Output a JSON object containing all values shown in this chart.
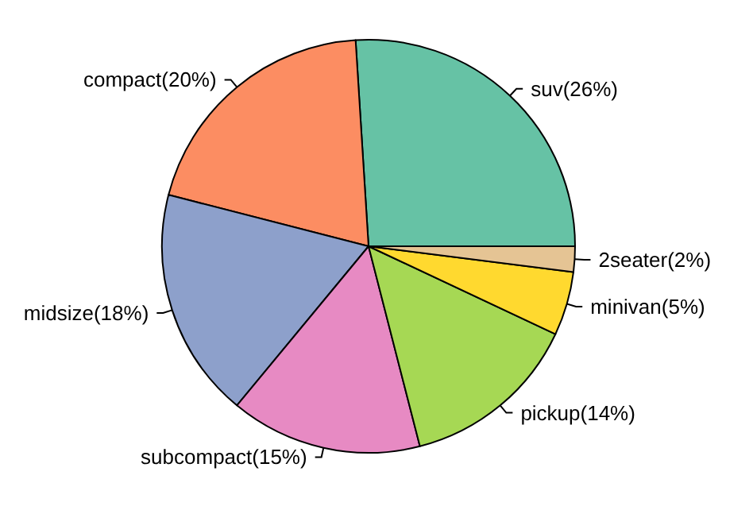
{
  "chart_data": {
    "type": "pie",
    "categories": [
      "suv(26%)",
      "compact(20%)",
      "midsize(18%)",
      "subcompact(15%)",
      "pickup(14%)",
      "minivan(5%)",
      "2seater(2%)"
    ],
    "values": [
      26,
      20,
      18,
      15,
      14,
      5,
      2
    ],
    "colors": [
      "#66c2a5",
      "#fc8d62",
      "#8da0cb",
      "#e78ac3",
      "#a6d854",
      "#ffd92f",
      "#e5c494"
    ],
    "legend": false
  }
}
